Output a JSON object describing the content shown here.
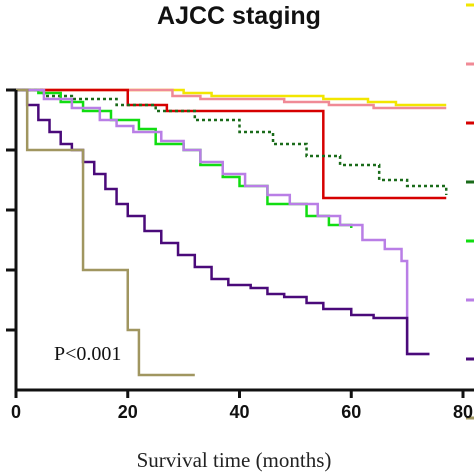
{
  "chart_data": {
    "type": "line",
    "title": "AJCC staging",
    "xlabel": "Survival time (months)",
    "ylabel": "",
    "annotation": "P<0.001",
    "xlim": [
      0,
      80
    ],
    "ylim": [
      0,
      1
    ],
    "x_ticks": [
      "0",
      "20",
      "40",
      "60",
      "80"
    ],
    "grid": false,
    "legend": "right",
    "series": [
      {
        "color": "#f2e600",
        "points": [
          [
            0,
            1
          ],
          [
            30,
            1
          ],
          [
            30,
            0.99
          ],
          [
            35,
            0.99
          ],
          [
            35,
            0.98
          ],
          [
            55,
            0.98
          ],
          [
            55,
            0.97
          ],
          [
            63,
            0.97
          ],
          [
            63,
            0.96
          ],
          [
            68,
            0.96
          ],
          [
            68,
            0.95
          ],
          [
            77,
            0.95
          ]
        ]
      },
      {
        "color": "#f08a96",
        "points": [
          [
            0,
            1
          ],
          [
            28,
            1
          ],
          [
            28,
            0.98
          ],
          [
            33,
            0.98
          ],
          [
            33,
            0.97
          ],
          [
            48,
            0.97
          ],
          [
            48,
            0.96
          ],
          [
            56,
            0.96
          ],
          [
            56,
            0.95
          ],
          [
            64,
            0.95
          ],
          [
            64,
            0.94
          ],
          [
            77,
            0.94
          ]
        ]
      },
      {
        "color": "#d60000",
        "points": [
          [
            0,
            1
          ],
          [
            20,
            1
          ],
          [
            20,
            0.95
          ],
          [
            27,
            0.95
          ],
          [
            27,
            0.93
          ],
          [
            49,
            0.93
          ],
          [
            49,
            0.93
          ],
          [
            55,
            0.93
          ],
          [
            55,
            0.64
          ],
          [
            77,
            0.64
          ]
        ]
      },
      {
        "color": "#1a6b1a",
        "dashed": true,
        "points": [
          [
            0,
            1
          ],
          [
            5,
            0.98
          ],
          [
            10,
            0.97
          ],
          [
            18,
            0.95
          ],
          [
            25,
            0.93
          ],
          [
            32,
            0.9
          ],
          [
            40,
            0.86
          ],
          [
            46,
            0.82
          ],
          [
            52,
            0.78
          ],
          [
            58,
            0.75
          ],
          [
            65,
            0.7
          ],
          [
            70,
            0.68
          ],
          [
            77,
            0.65
          ]
        ]
      },
      {
        "color": "#11dd11",
        "points": [
          [
            0,
            1
          ],
          [
            4,
            0.99
          ],
          [
            8,
            0.96
          ],
          [
            12,
            0.93
          ],
          [
            17,
            0.9
          ],
          [
            22,
            0.87
          ],
          [
            25,
            0.82
          ],
          [
            30,
            0.8
          ],
          [
            33,
            0.75
          ],
          [
            37,
            0.71
          ],
          [
            40,
            0.68
          ],
          [
            45,
            0.67
          ],
          [
            45,
            0.62
          ],
          [
            52,
            0.58
          ],
          [
            56,
            0.55
          ],
          [
            60,
            0.54
          ]
        ]
      },
      {
        "color": "#b97ee6",
        "points": [
          [
            0,
            1
          ],
          [
            5,
            0.97
          ],
          [
            10,
            0.94
          ],
          [
            15,
            0.9
          ],
          [
            18,
            0.88
          ],
          [
            21,
            0.86
          ],
          [
            26,
            0.83
          ],
          [
            30,
            0.8
          ],
          [
            33,
            0.76
          ],
          [
            37,
            0.72
          ],
          [
            41,
            0.68
          ],
          [
            45,
            0.65
          ],
          [
            49,
            0.62
          ],
          [
            54,
            0.58
          ],
          [
            58,
            0.55
          ],
          [
            62,
            0.5
          ],
          [
            66,
            0.47
          ],
          [
            69,
            0.43
          ],
          [
            70,
            0.43
          ],
          [
            70,
            0.12
          ],
          [
            74,
            0.12
          ]
        ]
      },
      {
        "color": "#4a0a7a",
        "points": [
          [
            0,
            1
          ],
          [
            2,
            0.95
          ],
          [
            4,
            0.9
          ],
          [
            6,
            0.86
          ],
          [
            8,
            0.82
          ],
          [
            10,
            0.8
          ],
          [
            12,
            0.76
          ],
          [
            14,
            0.72
          ],
          [
            16,
            0.67
          ],
          [
            18,
            0.62
          ],
          [
            20,
            0.58
          ],
          [
            23,
            0.53
          ],
          [
            26,
            0.49
          ],
          [
            29,
            0.45
          ],
          [
            32,
            0.41
          ],
          [
            35,
            0.37
          ],
          [
            38,
            0.35
          ],
          [
            42,
            0.34
          ],
          [
            45,
            0.32
          ],
          [
            48,
            0.31
          ],
          [
            52,
            0.29
          ],
          [
            55,
            0.27
          ],
          [
            60,
            0.25
          ],
          [
            64,
            0.24
          ],
          [
            70,
            0.23
          ],
          [
            70,
            0.12
          ],
          [
            74,
            0.12
          ]
        ]
      },
      {
        "color": "#a09660",
        "points": [
          [
            0,
            1
          ],
          [
            2,
            0.97
          ],
          [
            2,
            0.8
          ],
          [
            12,
            0.8
          ],
          [
            12,
            0.4
          ],
          [
            20,
            0.4
          ],
          [
            20,
            0.2
          ],
          [
            22,
            0.2
          ],
          [
            22,
            0.05
          ],
          [
            32,
            0.05
          ]
        ]
      }
    ]
  }
}
